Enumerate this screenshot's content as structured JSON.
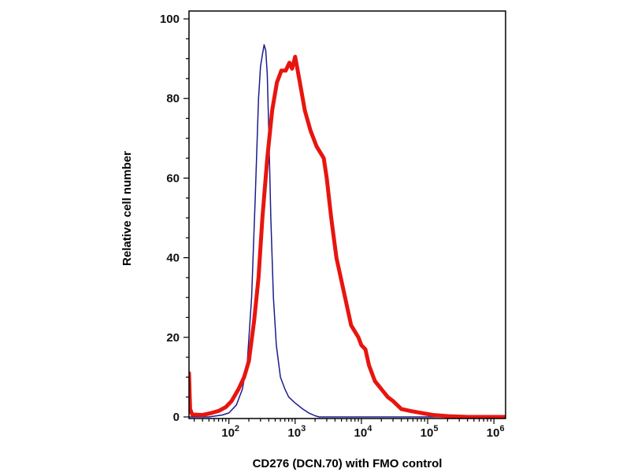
{
  "chart_data": {
    "type": "line",
    "title": "",
    "xlabel": "CD276 (DCN.70) with FMO control",
    "ylabel": "Relative cell number",
    "xscale": "log",
    "xlim": [
      25,
      1500000
    ],
    "ylim": [
      0,
      100
    ],
    "grid": false,
    "legend": "none",
    "colors": {
      "axis": "#000000",
      "background": "#ffffff"
    },
    "y_ticks": [
      {
        "value": 0,
        "label": "0"
      },
      {
        "value": 20,
        "label": "20"
      },
      {
        "value": 40,
        "label": "40"
      },
      {
        "value": 60,
        "label": "60"
      },
      {
        "value": 80,
        "label": "80"
      },
      {
        "value": 100,
        "label": "100"
      }
    ],
    "x_ticks": [
      {
        "value": 100,
        "base": "10",
        "exp": "2"
      },
      {
        "value": 1000,
        "base": "10",
        "exp": "3"
      },
      {
        "value": 10000,
        "base": "10",
        "exp": "4"
      },
      {
        "value": 100000,
        "base": "10",
        "exp": "5"
      },
      {
        "value": 1000000,
        "base": "10",
        "exp": "6"
      }
    ],
    "series": [
      {
        "name": "FMO control",
        "color": "#1c1c8c",
        "width": 1.5,
        "points": [
          [
            25,
            0
          ],
          [
            50,
            0
          ],
          [
            80,
            0.5
          ],
          [
            100,
            1
          ],
          [
            130,
            3
          ],
          [
            160,
            7
          ],
          [
            190,
            14
          ],
          [
            220,
            30
          ],
          [
            250,
            55
          ],
          [
            280,
            80
          ],
          [
            300,
            88
          ],
          [
            320,
            91
          ],
          [
            340,
            93.5
          ],
          [
            360,
            92
          ],
          [
            380,
            86
          ],
          [
            400,
            72
          ],
          [
            430,
            50
          ],
          [
            470,
            30
          ],
          [
            520,
            18
          ],
          [
            600,
            10
          ],
          [
            700,
            7
          ],
          [
            800,
            5
          ],
          [
            1000,
            3.5
          ],
          [
            1300,
            2
          ],
          [
            1600,
            1
          ],
          [
            2000,
            0.3
          ],
          [
            2300,
            0
          ],
          [
            1500000,
            0
          ]
        ]
      },
      {
        "name": "CD276 (DCN.70)",
        "color": "#e8150f",
        "width": 5,
        "points": [
          [
            25,
            11
          ],
          [
            26,
            2
          ],
          [
            28,
            0.6
          ],
          [
            40,
            0.5
          ],
          [
            55,
            1
          ],
          [
            70,
            1.5
          ],
          [
            90,
            2.5
          ],
          [
            110,
            4
          ],
          [
            140,
            7
          ],
          [
            170,
            10
          ],
          [
            200,
            14
          ],
          [
            240,
            24
          ],
          [
            280,
            35
          ],
          [
            320,
            50
          ],
          [
            380,
            65
          ],
          [
            450,
            77
          ],
          [
            530,
            84
          ],
          [
            620,
            87
          ],
          [
            720,
            87
          ],
          [
            820,
            89
          ],
          [
            900,
            87.5
          ],
          [
            1000,
            90.5
          ],
          [
            1150,
            85
          ],
          [
            1400,
            77
          ],
          [
            1700,
            72
          ],
          [
            2100,
            68
          ],
          [
            2700,
            65
          ],
          [
            3000,
            60
          ],
          [
            3500,
            50
          ],
          [
            4200,
            40
          ],
          [
            5500,
            31
          ],
          [
            7000,
            23
          ],
          [
            9000,
            20
          ],
          [
            10000,
            18
          ],
          [
            11500,
            17
          ],
          [
            13000,
            13
          ],
          [
            16000,
            9
          ],
          [
            20000,
            7
          ],
          [
            25000,
            5
          ],
          [
            30000,
            4
          ],
          [
            40000,
            2
          ],
          [
            55000,
            1.5
          ],
          [
            80000,
            1
          ],
          [
            120000,
            0.5
          ],
          [
            200000,
            0.2
          ],
          [
            400000,
            0
          ],
          [
            1500000,
            0
          ]
        ]
      }
    ]
  }
}
